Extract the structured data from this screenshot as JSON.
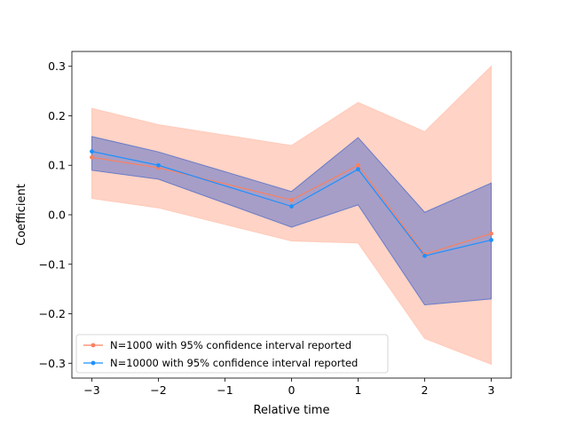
{
  "chart_data": {
    "type": "line",
    "title": "",
    "xlabel": "Relative time",
    "ylabel": "Coefficient",
    "xlim": [
      -3.3,
      3.3
    ],
    "ylim": [
      -0.33,
      0.33
    ],
    "grid": false,
    "legend_position": "lower-left",
    "x": [
      -3,
      -2,
      0,
      1,
      2,
      3
    ],
    "x_ticks": [
      -3,
      -2,
      -1,
      0,
      1,
      2,
      3
    ],
    "x_tick_labels": [
      "−3",
      "−2",
      "−1",
      "0",
      "1",
      "2",
      "3"
    ],
    "y_ticks": [
      -0.3,
      -0.2,
      -0.1,
      0.0,
      0.1,
      0.2,
      0.3
    ],
    "y_tick_labels": [
      "−0.3",
      "−0.2",
      "−0.1",
      "0.0",
      "0.1",
      "0.2",
      "0.3"
    ],
    "series": [
      {
        "name": "N=1000 with 95% confidence interval reported",
        "color": "#fa8060",
        "band_color": "#ffcbbb",
        "values": [
          0.116,
          0.095,
          0.03,
          0.1,
          -0.08,
          -0.038
        ],
        "lower": [
          0.033,
          0.014,
          -0.053,
          -0.057,
          -0.25,
          -0.302
        ],
        "upper": [
          0.215,
          0.182,
          0.14,
          0.227,
          0.168,
          0.3
        ]
      },
      {
        "name": "N=10000 with 95% confidence interval reported",
        "color": "#1e90ff",
        "band_color": "#6a7cc8",
        "values": [
          0.128,
          0.1,
          0.017,
          0.092,
          -0.083,
          -0.051
        ],
        "lower": [
          0.09,
          0.072,
          -0.025,
          0.02,
          -0.182,
          -0.17
        ],
        "upper": [
          0.158,
          0.127,
          0.047,
          0.156,
          0.005,
          0.064
        ]
      }
    ]
  }
}
